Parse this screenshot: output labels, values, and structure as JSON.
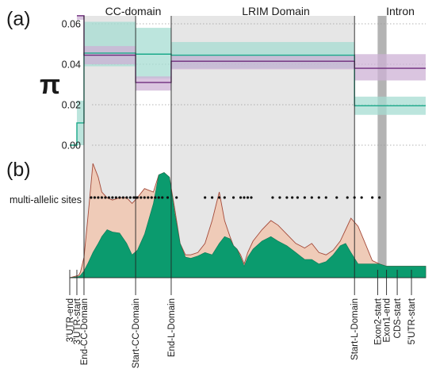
{
  "chart_data": [
    {
      "type": "line",
      "panel_label": "(a)",
      "ylabel": "π",
      "yticks": [
        "0.00",
        "0.02",
        "0.04",
        "0.06"
      ],
      "ylim": [
        -0.001,
        0.064
      ],
      "grid": "horizontal dotted",
      "region_labels": [
        "CC-domain",
        "LRIM Domain",
        "Intron"
      ],
      "colors": {
        "teal": "#1aa98a",
        "teal_band": "#a6dcd2",
        "purple": "#6e2c7c",
        "purple_band": "#cdb2d5",
        "region_shade": "#e6e6e6",
        "intron": "#b3b3b3"
      },
      "series": [
        {
          "key": "teal",
          "segments": [
            {
              "from": 0.0,
              "to": 0.04,
              "value": 0.0
            },
            {
              "from": 0.04,
              "to": 0.08,
              "value": 0.011,
              "low": 0.0,
              "high": 0.022
            },
            {
              "from": 0.08,
              "to": 0.37,
              "value": 0.0455,
              "low": 0.039,
              "high": 0.061
            },
            {
              "from": 0.37,
              "to": 0.57,
              "value": 0.045,
              "low": 0.033,
              "high": 0.058
            },
            {
              "from": 0.57,
              "to": 1.0,
              "value": 0.0445,
              "low": 0.038,
              "high": 0.051
            },
            {
              "from": 1.0,
              "to": 1.6,
              "value": 0.0445,
              "low": 0.038,
              "high": 0.051
            },
            {
              "from": 1.6,
              "to": 2.0,
              "value": 0.0195,
              "low": 0.015,
              "high": 0.024
            }
          ]
        },
        {
          "key": "purple",
          "segments": [
            {
              "from": 0.04,
              "to": 0.08,
              "value": 0.064,
              "low": 0.062,
              "high": 0.064
            },
            {
              "from": 0.08,
              "to": 0.37,
              "value": 0.0445,
              "low": 0.04,
              "high": 0.049
            },
            {
              "from": 0.37,
              "to": 0.57,
              "value": 0.031,
              "low": 0.027,
              "high": 0.034
            },
            {
              "from": 0.57,
              "to": 1.6,
              "value": 0.0415,
              "low": 0.0375,
              "high": 0.0445
            },
            {
              "from": 1.6,
              "to": 2.0,
              "value": 0.038,
              "low": 0.032,
              "high": 0.045
            }
          ]
        }
      ]
    },
    {
      "type": "area",
      "panel_label": "(b)",
      "annotation": "multi-allelic sites",
      "colors": {
        "green": "#0b9b6e",
        "pink": "#efcbb8",
        "pink_stroke": "#a44a3a",
        "dots": "#111111"
      },
      "x": [
        0.0,
        0.05,
        0.06,
        0.08,
        0.1,
        0.13,
        0.16,
        0.18,
        0.21,
        0.24,
        0.28,
        0.32,
        0.35,
        0.38,
        0.42,
        0.47,
        0.5,
        0.53,
        0.56,
        0.59,
        0.62,
        0.65,
        0.68,
        0.72,
        0.76,
        0.8,
        0.84,
        0.87,
        0.9,
        0.92,
        0.94,
        0.96,
        0.98,
        1.0,
        1.03,
        1.08,
        1.13,
        1.17,
        1.22,
        1.27,
        1.32,
        1.36,
        1.4,
        1.44,
        1.48,
        1.52,
        1.55,
        1.58,
        1.62,
        1.66,
        1.7,
        1.74,
        1.78,
        1.8,
        1.85,
        1.9,
        1.95,
        2.0
      ],
      "series": [
        {
          "key": "green",
          "values": [
            0.0,
            0.01,
            0.02,
            0.06,
            0.12,
            0.22,
            0.3,
            0.36,
            0.42,
            0.4,
            0.39,
            0.3,
            0.2,
            0.24,
            0.38,
            0.65,
            0.9,
            0.92,
            0.88,
            0.56,
            0.3,
            0.18,
            0.17,
            0.19,
            0.22,
            0.2,
            0.3,
            0.36,
            0.34,
            0.28,
            0.25,
            0.18,
            0.1,
            0.18,
            0.25,
            0.32,
            0.36,
            0.32,
            0.28,
            0.22,
            0.16,
            0.16,
            0.12,
            0.14,
            0.2,
            0.28,
            0.3,
            0.22,
            0.12,
            0.12,
            0.12,
            0.12,
            0.1,
            0.1,
            0.1,
            0.1,
            0.1,
            0.1
          ]
        },
        {
          "key": "pink",
          "values": [
            0.0,
            0.02,
            0.05,
            0.18,
            0.5,
            1.0,
            0.88,
            0.75,
            0.7,
            0.68,
            0.7,
            0.7,
            0.65,
            0.7,
            0.78,
            0.75,
            0.9,
            0.92,
            0.88,
            0.6,
            0.3,
            0.2,
            0.2,
            0.22,
            0.3,
            0.5,
            0.75,
            0.5,
            0.36,
            0.28,
            0.25,
            0.2,
            0.12,
            0.22,
            0.32,
            0.42,
            0.5,
            0.46,
            0.38,
            0.3,
            0.26,
            0.3,
            0.22,
            0.2,
            0.24,
            0.32,
            0.42,
            0.52,
            0.45,
            0.3,
            0.15,
            0.12,
            0.1,
            0.1,
            0.1,
            0.1,
            0.1,
            0.1
          ]
        }
      ],
      "multi_allelic_sites": [
        0.12,
        0.14,
        0.16,
        0.18,
        0.2,
        0.22,
        0.24,
        0.26,
        0.28,
        0.3,
        0.32,
        0.34,
        0.36,
        0.37,
        0.38,
        0.4,
        0.42,
        0.44,
        0.46,
        0.48,
        0.5,
        0.52,
        0.55,
        0.6,
        0.76,
        0.8,
        0.84,
        0.87,
        0.92,
        0.96,
        0.98,
        1.0,
        1.02,
        1.14,
        1.18,
        1.22,
        1.25,
        1.28,
        1.32,
        1.36,
        1.4,
        1.44,
        1.5,
        1.56,
        1.6,
        1.64,
        1.7,
        1.74
      ]
    }
  ],
  "boundaries": [
    {
      "x": 0.0,
      "label": "3'UTR-end"
    },
    {
      "x": 0.04,
      "label": "3'UTR-start"
    },
    {
      "x": 0.08,
      "label": "End-CC-Domain"
    },
    {
      "x": 0.37,
      "label": "Start-CC-Domain"
    },
    {
      "x": 0.57,
      "label": "End-L-Domain"
    },
    {
      "x": 1.6,
      "label": "Start-L-Domain"
    },
    {
      "x": 1.73,
      "label": "Exon2-start"
    },
    {
      "x": 1.78,
      "label": "Exon1-end"
    },
    {
      "x": 1.84,
      "label": "CDS-start"
    },
    {
      "x": 1.92,
      "label": "5'UTR-start"
    }
  ],
  "shaded_regions": [
    {
      "from": 0.08,
      "to": 0.37,
      "label": "CC-domain"
    },
    {
      "from": 0.57,
      "to": 1.6,
      "label": "LRIM Domain"
    }
  ],
  "intron": {
    "from": 1.73,
    "to": 1.78,
    "label": "Intron"
  }
}
